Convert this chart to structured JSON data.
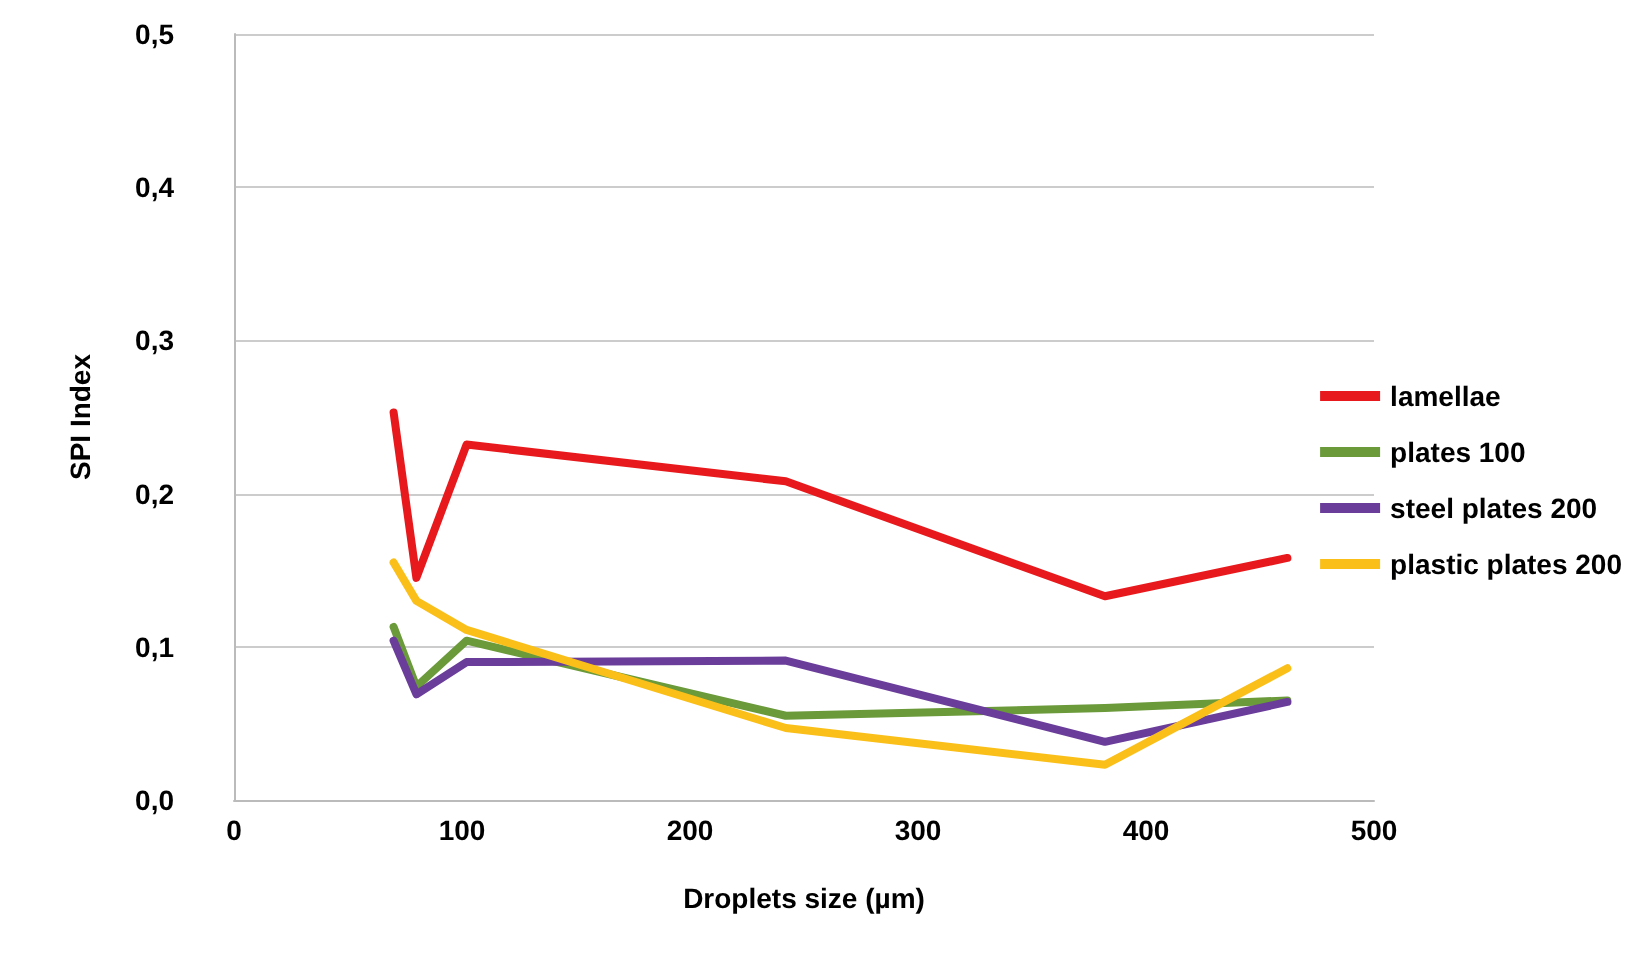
{
  "chart_data": {
    "type": "line",
    "xlabel": "Droplets size (µm)",
    "ylabel": "SPI Index",
    "x": [
      70,
      80,
      102,
      242,
      382,
      462
    ],
    "series": [
      {
        "name": "lamellae",
        "color": "#e8191c",
        "values": [
          0.253,
          0.145,
          0.232,
          0.208,
          0.133,
          0.158
        ]
      },
      {
        "name": "plates 100",
        "color": "#6a9a3a",
        "values": [
          0.113,
          0.074,
          0.104,
          0.055,
          0.06,
          0.065
        ]
      },
      {
        "name": "steel plates 200",
        "color": "#6a3d9a",
        "values": [
          0.104,
          0.069,
          0.09,
          0.091,
          0.038,
          0.064
        ]
      },
      {
        "name": "plastic plates 200",
        "color": "#fbbf1a",
        "values": [
          0.155,
          0.13,
          0.111,
          0.047,
          0.023,
          0.086
        ]
      }
    ],
    "xlim": [
      0,
      500
    ],
    "xticks": [
      0,
      100,
      200,
      300,
      400,
      500
    ],
    "ylim": [
      0,
      0.5
    ],
    "yticks": [
      {
        "value": 0,
        "label": "0,0"
      },
      {
        "value": 0.1,
        "label": "0,1"
      },
      {
        "value": 0.2,
        "label": "0,2"
      },
      {
        "value": 0.3,
        "label": "0,3"
      },
      {
        "value": 0.4,
        "label": "0,4"
      },
      {
        "value": 0.5,
        "label": "0,5"
      }
    ],
    "grid": "y",
    "legend": "right",
    "marker": "none",
    "line_style": "solid"
  }
}
